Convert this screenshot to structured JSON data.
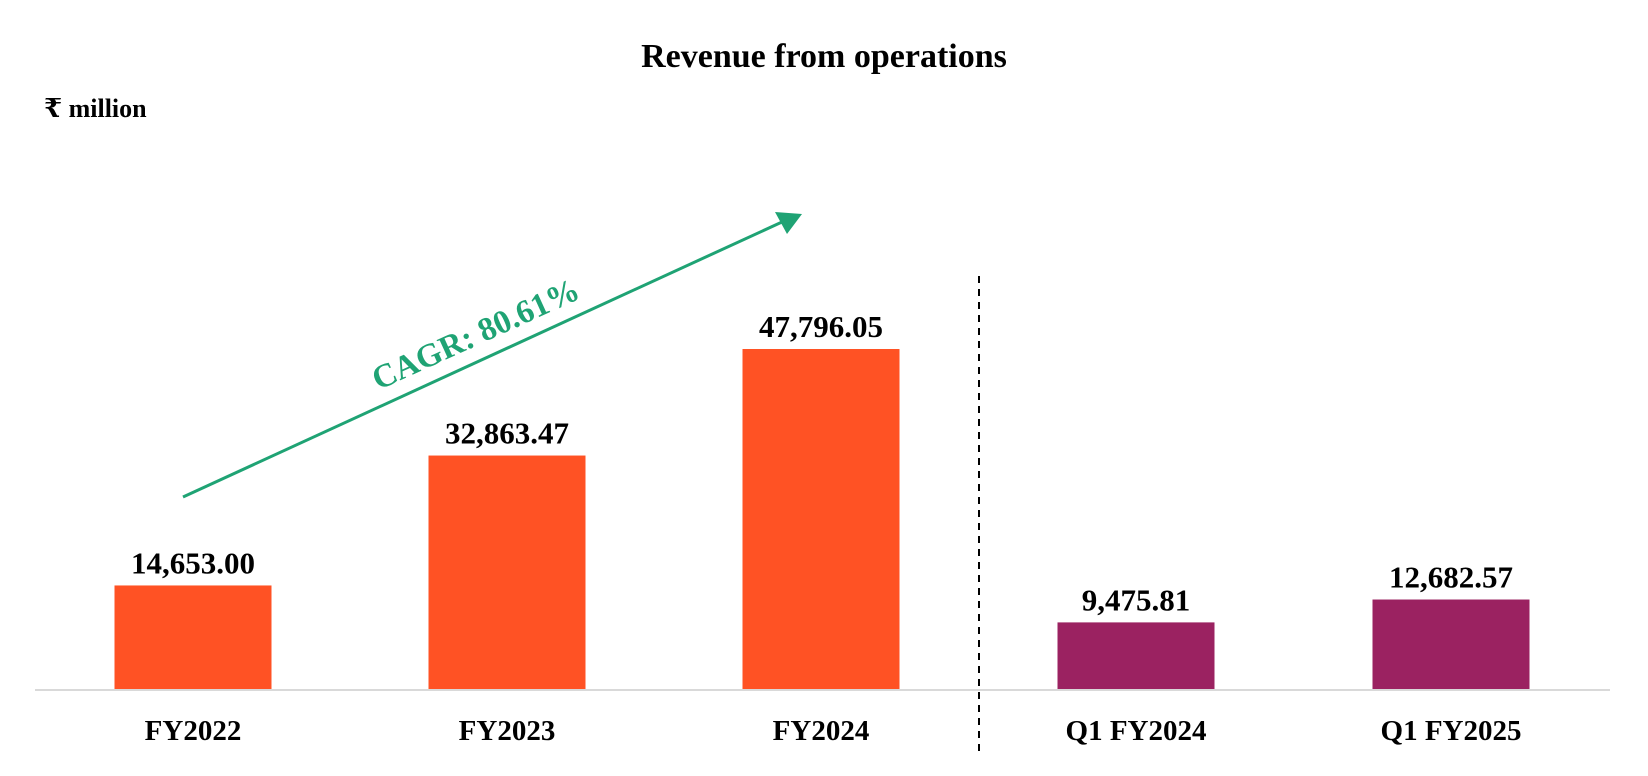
{
  "chart_data": {
    "type": "bar",
    "title": "Revenue from operations",
    "ylabel": "₹ million",
    "xlabel": "",
    "categories": [
      "FY2022",
      "FY2023",
      "FY2024",
      "Q1 FY2024",
      "Q1 FY2025"
    ],
    "values": [
      14653.0,
      32863.47,
      47796.05,
      9475.81,
      12682.57
    ],
    "value_labels": [
      "14,653.00",
      "32,863.47",
      "47,796.05",
      "9,475.81",
      "12,682.57"
    ],
    "groups": [
      {
        "name": "annual",
        "categories": [
          "FY2022",
          "FY2023",
          "FY2024"
        ],
        "color": "#FF5224"
      },
      {
        "name": "quarterly",
        "categories": [
          "Q1 FY2024",
          "Q1 FY2025"
        ],
        "color": "#9B2261"
      }
    ],
    "annotation": {
      "text": "CAGR: 80.61%",
      "color": "#1FA374"
    },
    "separator": "dashed vertical line between FY2024 and Q1 FY2024",
    "ylim": [
      0,
      47796.05
    ],
    "grid": false,
    "legend": "none"
  }
}
